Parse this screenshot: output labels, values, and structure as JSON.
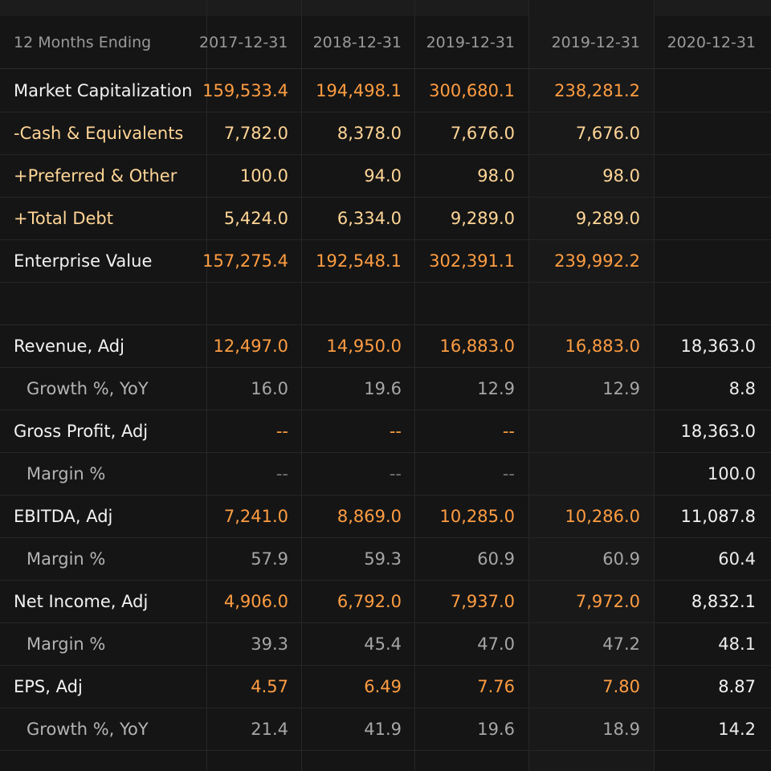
{
  "header": {
    "label": "12 Months Ending",
    "periods": [
      "2017-12-31",
      "2018-12-31",
      "2019-12-31",
      "2019-12-31",
      "2020-12-31"
    ]
  },
  "rows": [
    {
      "label": "Market Capitalization",
      "values": [
        "159,533.4",
        "194,498.1",
        "300,680.1",
        "238,281.2",
        ""
      ]
    },
    {
      "label": "-Cash & Equivalents",
      "values": [
        "7,782.0",
        "8,378.0",
        "7,676.0",
        "7,676.0",
        ""
      ]
    },
    {
      "label": "+Preferred & Other",
      "values": [
        "100.0",
        "94.0",
        "98.0",
        "98.0",
        ""
      ]
    },
    {
      "label": "+Total Debt",
      "values": [
        "5,424.0",
        "6,334.0",
        "9,289.0",
        "9,289.0",
        ""
      ]
    },
    {
      "label": "Enterprise Value",
      "values": [
        "157,275.4",
        "192,548.1",
        "302,391.1",
        "239,992.2",
        ""
      ]
    },
    {
      "label": "",
      "values": [
        "",
        "",
        "",
        "",
        ""
      ]
    },
    {
      "label": "Revenue, Adj",
      "values": [
        "12,497.0",
        "14,950.0",
        "16,883.0",
        "16,883.0",
        "18,363.0"
      ]
    },
    {
      "label": "Growth %, YoY",
      "values": [
        "16.0",
        "19.6",
        "12.9",
        "12.9",
        "8.8"
      ]
    },
    {
      "label": "Gross Profit, Adj",
      "values": [
        "--",
        "--",
        "--",
        "",
        "18,363.0"
      ]
    },
    {
      "label": "Margin %",
      "values": [
        "--",
        "--",
        "--",
        "",
        "100.0"
      ]
    },
    {
      "label": "EBITDA, Adj",
      "values": [
        "7,241.0",
        "8,869.0",
        "10,285.0",
        "10,286.0",
        "11,087.8"
      ]
    },
    {
      "label": "Margin %",
      "values": [
        "57.9",
        "59.3",
        "60.9",
        "60.9",
        "60.4"
      ]
    },
    {
      "label": "Net Income, Adj",
      "values": [
        "4,906.0",
        "6,792.0",
        "7,937.0",
        "7,972.0",
        "8,832.1"
      ]
    },
    {
      "label": "Margin %",
      "values": [
        "39.3",
        "45.4",
        "47.0",
        "47.2",
        "48.1"
      ]
    },
    {
      "label": "EPS, Adj",
      "values": [
        "4.57",
        "6.49",
        "7.76",
        "7.80",
        "8.87"
      ]
    },
    {
      "label": "Growth %, YoY",
      "values": [
        "21.4",
        "41.9",
        "19.6",
        "18.9",
        "14.2"
      ]
    }
  ]
}
